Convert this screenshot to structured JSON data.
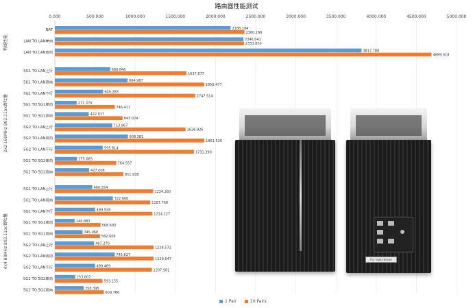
{
  "chart_data": {
    "type": "bar",
    "orientation": "horizontal",
    "title": "路由器性能测试",
    "xlim": [
      0,
      5000
    ],
    "x_ticks": [
      "0.000",
      "500.000",
      "1000.000",
      "1500.000",
      "2000.000",
      "2500.000",
      "3000.000",
      "3500.000",
      "4000.000",
      "4500.000",
      "5000.000"
    ],
    "legend_position": "bottom",
    "series": [
      {
        "name": "1 Pair",
        "color": "#5b9bd5"
      },
      {
        "name": "10 Pairs",
        "color": "#ed7d31"
      }
    ],
    "groups": [
      {
        "label": "有线性能",
        "rows": [
          {
            "label": "NAT",
            "values": [
              2188.184,
              2360.166
            ],
            "value_labels": [
              "2188.184",
              "2360.166"
            ]
          },
          {
            "label": "LAN TO LAN单向",
            "values": [
              2346.041,
              2353.85
            ],
            "value_labels": [
              "2346.041",
              "2353.850"
            ]
          },
          {
            "label": "LAN TO LAN双向",
            "values": [
              3817.788,
              4689.018
            ],
            "value_labels": [
              "3817.788",
              "4689.018"
            ]
          }
        ]
      },
      {
        "label": "2x2 160MHz 802.11ax吞吐量",
        "rows": [
          {
            "label": "5G1 TO LAN上行",
            "values": [
              688.646,
              1637.877
            ],
            "value_labels": [
              "688.646",
              "1637.877"
            ]
          },
          {
            "label": "5G1 TO LAN双向",
            "values": [
              904.967,
              1858.477
            ],
            "value_labels": [
              "904.967",
              "1858.477"
            ]
          },
          {
            "label": "5G1 TO LAN下行",
            "values": [
              600.285,
              1747.514
            ],
            "value_labels": [
              "600.285",
              "1747.514"
            ]
          },
          {
            "label": "5G1 TO 5G1单向",
            "values": [
              271.37,
              746.411
            ],
            "value_labels": [
              "271.370",
              "746.411"
            ]
          },
          {
            "label": "5G1 TO 5G1双向",
            "values": [
              422.017,
              843.024
            ],
            "value_labels": [
              "422.017",
              "843.024"
            ]
          },
          {
            "label": "5G2 TO LAN上行",
            "values": [
              713.967,
              1626.926
            ],
            "value_labels": [
              "713.967",
              "1626.926"
            ]
          },
          {
            "label": "5G2 TO LAN双向",
            "values": [
              908.381,
              1861.53
            ],
            "value_labels": [
              "908.381",
              "1861.530"
            ]
          },
          {
            "label": "5G2 TO LAN下行",
            "values": [
              595.814,
              1731.39
            ],
            "value_labels": [
              "595.814",
              "1731.390"
            ]
          },
          {
            "label": "5G2 TO 5G2单向",
            "values": [
              275.065,
              764.557
            ],
            "value_labels": [
              "275.065",
              "764.557"
            ]
          },
          {
            "label": "5G2 TO 5G2双向",
            "values": [
              427.008,
              851.938
            ],
            "value_labels": [
              "427.008",
              "851.938"
            ]
          }
        ]
      },
      {
        "label": "4x4 80MHz 802.11ac吞吐量",
        "rows": [
          {
            "label": "5G1 TO LAN上行",
            "values": [
              466.554,
              1224.26
            ],
            "value_labels": [
              "466.554",
              "1224.260"
            ]
          },
          {
            "label": "5G1 TO LAN双向",
            "values": [
              722.6,
              1187.768
            ],
            "value_labels": [
              "722.600",
              "1187.768"
            ]
          },
          {
            "label": "5G1 TO LAN下行",
            "values": [
              499.938,
              1214.127
            ],
            "value_labels": [
              "499.938",
              "1214.127"
            ]
          },
          {
            "label": "5G1 TO 5G1单向",
            "values": [
              246.883,
              568.693
            ],
            "value_labels": [
              "246.883",
              "568.693"
            ]
          },
          {
            "label": "5G1 TO 5G1双向",
            "values": [
              345.06,
              562.608
            ],
            "value_labels": [
              "345.060",
              "562.608"
            ]
          },
          {
            "label": "5G2 TO LAN上行",
            "values": [
              487.27,
              1228.572
            ],
            "value_labels": [
              "487.270",
              "1228.572"
            ]
          },
          {
            "label": "5G2 TO LAN双向",
            "values": [
              745.627,
              1229.647
            ],
            "value_labels": [
              "745.627",
              "1229.647"
            ]
          },
          {
            "label": "5G2 TO LAN下行",
            "values": [
              499.469,
              1207.581
            ],
            "value_labels": [
              "499.469",
              "1207.581"
            ]
          },
          {
            "label": "5G2 TO 5G2单向",
            "values": [
              253.807,
              593.155
            ],
            "value_labels": [
              "253.807",
              "593.155"
            ]
          },
          {
            "label": "5G2 TO 5G2双向",
            "values": [
              358.395,
              609.766
            ],
            "value_labels": [
              "358.395",
              "609.766"
            ]
          }
        ]
      }
    ]
  },
  "photo": {
    "device_label_text": "For realiz-brows"
  }
}
